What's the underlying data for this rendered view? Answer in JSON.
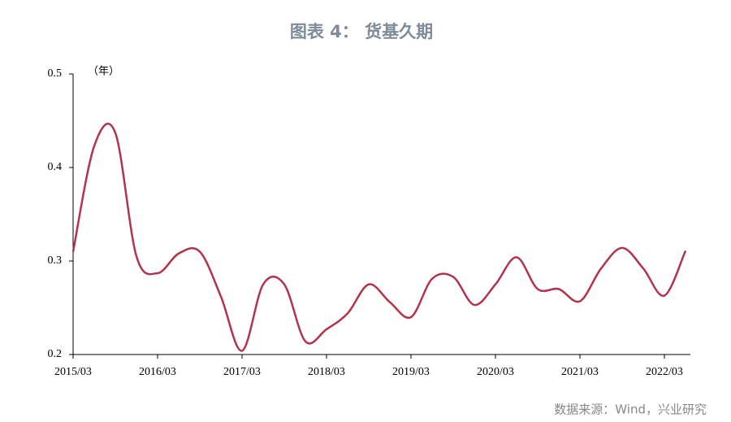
{
  "chart_data": {
    "type": "line",
    "title": "图表 4：    货基久期",
    "y_unit": "（年）",
    "source": "数据来源：Wind，兴业研究",
    "categories": [
      "2015/03",
      null,
      null,
      null,
      "2016/03",
      null,
      null,
      null,
      "2017/03",
      null,
      null,
      null,
      "2018/03",
      null,
      null,
      null,
      "2019/03",
      null,
      null,
      null,
      "2020/03",
      null,
      null,
      null,
      "2021/03",
      null,
      null,
      null,
      "2022/03",
      null
    ],
    "series": [
      {
        "name": "货基久期",
        "color": "#b3334a",
        "values": [
          0.31,
          0.423,
          0.437,
          0.305,
          0.287,
          0.308,
          0.31,
          0.262,
          0.204,
          0.275,
          0.275,
          0.214,
          0.227,
          0.244,
          0.275,
          0.256,
          0.24,
          0.281,
          0.283,
          0.253,
          0.275,
          0.304,
          0.27,
          0.27,
          0.257,
          0.292,
          0.314,
          0.292,
          0.263,
          0.311
        ]
      }
    ],
    "ylim": [
      0.2,
      0.5
    ],
    "yticks": [
      0.2,
      0.3,
      0.4,
      0.5
    ],
    "grid": false
  }
}
